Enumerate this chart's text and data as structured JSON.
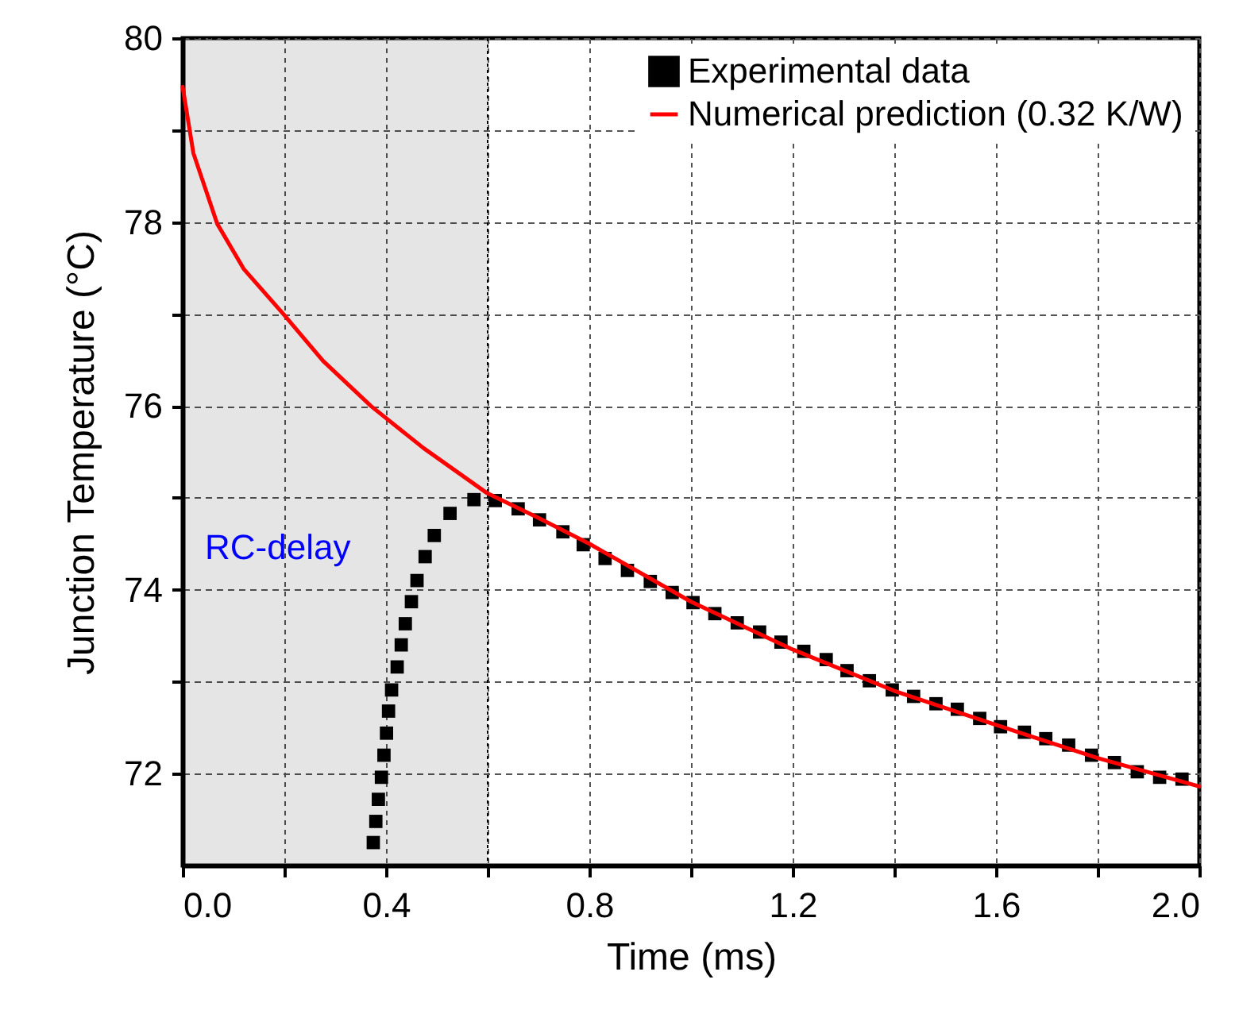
{
  "chart_data": {
    "type": "scatter",
    "xlabel": "Time (ms)",
    "ylabel": "Junction Temperature (°C)",
    "xlim": [
      0,
      2.0
    ],
    "ylim": [
      71,
      80
    ],
    "xticks": [
      "0.0",
      {
        "value": 0.2,
        "label": null
      },
      0.4,
      {
        "value": 0.6,
        "label": null
      },
      0.8,
      {
        "value": 1.0,
        "label": null
      },
      1.2,
      {
        "value": 1.4,
        "label": null
      },
      1.6,
      {
        "value": 1.8,
        "label": null
      },
      "2.0"
    ],
    "yticks": [
      {
        "value": 72,
        "label": "72"
      },
      {
        "value": 73,
        "label": null
      },
      {
        "value": 74,
        "label": "74"
      },
      {
        "value": 75,
        "label": null
      },
      {
        "value": 76,
        "label": "76"
      },
      {
        "value": 77,
        "label": null
      },
      {
        "value": 78,
        "label": "78"
      },
      {
        "value": 79,
        "label": null
      },
      {
        "value": 80,
        "label": "80"
      }
    ],
    "grid": true,
    "legend": "top right",
    "bands": [
      {
        "axis": "x",
        "from": 0,
        "to": 0.6,
        "label": "RC-delay"
      }
    ],
    "series": [
      {
        "name": "Experimental data",
        "marker": "square",
        "color": "#000000",
        "x": [
          0.375,
          0.38,
          0.385,
          0.391,
          0.396,
          0.401,
          0.405,
          0.411,
          0.422,
          0.43,
          0.438,
          0.45,
          0.461,
          0.477,
          0.495,
          0.526,
          0.573,
          0.615,
          0.66,
          0.702,
          0.748,
          0.788,
          0.831,
          0.875,
          0.92,
          0.963,
          1.004,
          1.047,
          1.091,
          1.135,
          1.177,
          1.222,
          1.266,
          1.307,
          1.351,
          1.396,
          1.438,
          1.482,
          1.524,
          1.568,
          1.609,
          1.656,
          1.698,
          1.743,
          1.788,
          1.833,
          1.878,
          1.922,
          1.966
        ],
        "values": [
          71.25,
          71.48,
          71.72,
          71.96,
          72.2,
          72.44,
          72.68,
          72.91,
          73.16,
          73.4,
          73.63,
          73.87,
          74.1,
          74.36,
          74.59,
          74.83,
          74.98,
          74.97,
          74.88,
          74.76,
          74.63,
          74.49,
          74.34,
          74.21,
          74.09,
          73.97,
          73.86,
          73.74,
          73.64,
          73.54,
          73.43,
          73.33,
          73.24,
          73.12,
          73.01,
          72.91,
          72.84,
          72.76,
          72.7,
          72.6,
          72.51,
          72.45,
          72.38,
          72.31,
          72.2,
          72.12,
          72.02,
          71.96,
          71.94
        ]
      },
      {
        "name": "Numerical prediction (0.32 K/W)",
        "type": "line",
        "color": "#ff0000",
        "x": [
          0,
          0.021,
          0.068,
          0.12,
          0.198,
          0.276,
          0.37,
          0.474,
          0.599,
          0.7,
          0.8,
          1.0,
          1.2,
          1.4,
          1.6,
          1.8,
          2.0
        ],
        "values": [
          79.47,
          78.75,
          77.98,
          77.49,
          77.0,
          76.49,
          76.0,
          75.54,
          75.05,
          74.78,
          74.5,
          73.87,
          73.35,
          72.9,
          72.53,
          72.17,
          71.86
        ]
      }
    ]
  }
}
